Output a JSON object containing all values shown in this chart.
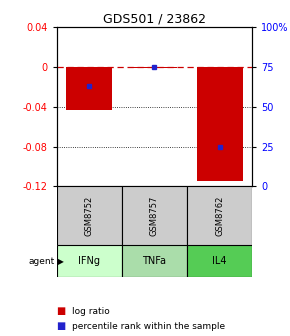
{
  "title": "GDS501 / 23862",
  "categories": [
    "IFNg",
    "TNFa",
    "IL4"
  ],
  "sample_ids": [
    "GSM8752",
    "GSM8757",
    "GSM8762"
  ],
  "log_ratios": [
    -0.043,
    -0.001,
    -0.115
  ],
  "percentile_ranks": [
    0.63,
    0.75,
    0.25
  ],
  "ylim_left": [
    -0.12,
    0.04
  ],
  "yticks_left": [
    -0.12,
    -0.08,
    -0.04,
    0.0,
    0.04
  ],
  "ytick_labels_left": [
    "-0.12",
    "-0.08",
    "-0.04",
    "0",
    "0.04"
  ],
  "yticks_right": [
    0.0,
    0.25,
    0.5,
    0.75,
    1.0
  ],
  "ytick_labels_right": [
    "0",
    "25",
    "50",
    "75",
    "100%"
  ],
  "bar_color": "#cc0000",
  "dot_color": "#2222cc",
  "grid_lines": [
    -0.04,
    -0.08
  ],
  "zero_line": 0.0,
  "bar_width": 0.7,
  "agent_colors": [
    "#ccffcc",
    "#aaddaa",
    "#55cc55"
  ],
  "sample_bg": "#cccccc",
  "table_border": "#000000",
  "legend_log_color": "#cc0000",
  "legend_dot_color": "#2222cc",
  "title_fontsize": 9,
  "tick_fontsize": 7,
  "table_fontsize": 7,
  "legend_fontsize": 6.5
}
